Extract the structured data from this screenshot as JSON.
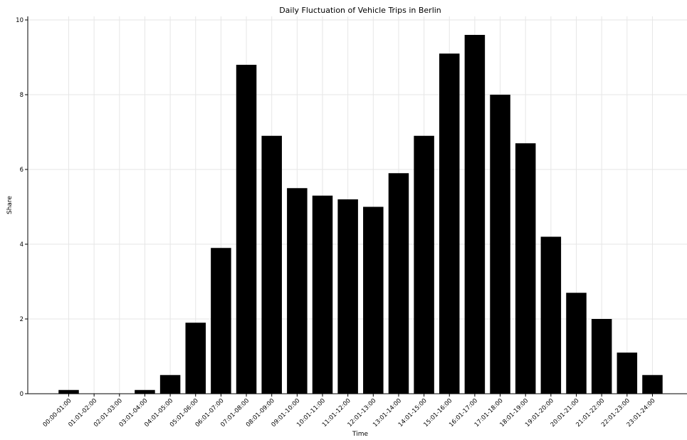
{
  "chart_data": {
    "type": "bar",
    "title": "Daily Fluctuation of Vehicle Trips in Berlin",
    "xlabel": "Time",
    "ylabel": "Share",
    "ylim": [
      0,
      10
    ],
    "yticks": [
      0,
      2,
      4,
      6,
      8,
      10
    ],
    "grid": true,
    "bar_color": "#000000",
    "grid_color": "#e6e6e6",
    "categories": [
      "00:00-01:00",
      "01:01-02:00",
      "02:01-03:00",
      "03:01-04:00",
      "04:01-05:00",
      "05:01-06:00",
      "06:01-07:00",
      "07:01-08:00",
      "08:01-09:00",
      "09:01-10:00",
      "10:01-11:00",
      "11:01-12:00",
      "12:01-13:00",
      "13:01-14:00",
      "14:01-15:00",
      "15:01-16:00",
      "16:01-17:00",
      "17:01-18:00",
      "18:01-19:00",
      "19:01-20:00",
      "20:01-21:00",
      "21:01-22:00",
      "22:01-23:00",
      "23:01-24:00"
    ],
    "values": [
      0.1,
      0,
      0,
      0.1,
      0.5,
      1.9,
      3.9,
      8.8,
      6.9,
      5.5,
      5.3,
      5.2,
      5.0,
      5.9,
      6.9,
      9.1,
      9.6,
      8.0,
      6.7,
      4.2,
      2.7,
      2.0,
      1.1,
      0.5
    ]
  }
}
